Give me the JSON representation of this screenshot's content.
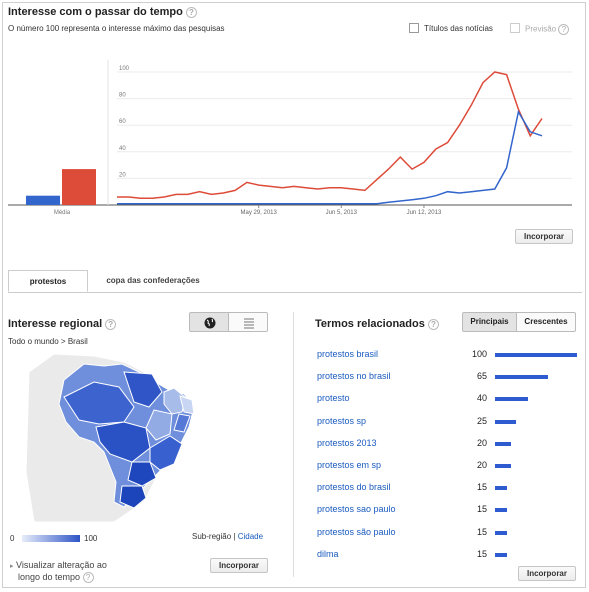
{
  "header": {
    "title": "Interesse com o passar do tempo",
    "subtitle": "O número 100 representa o interesse máximo das pesquisas",
    "news_label": "Títulos das notícias",
    "forecast_label": "Previsão"
  },
  "chart_data": {
    "type": "line",
    "x": [
      "May 17, 2013",
      "May 18, 2013",
      "May 19, 2013",
      "May 20, 2013",
      "May 21, 2013",
      "May 22, 2013",
      "May 23, 2013",
      "May 24, 2013",
      "May 25, 2013",
      "May 26, 2013",
      "May 27, 2013",
      "May 28, 2013",
      "May 29, 2013",
      "May 30, 2013",
      "May 31, 2013",
      "Jun 1, 2013",
      "Jun 2, 2013",
      "Jun 3, 2013",
      "Jun 4, 2013",
      "Jun 5, 2013",
      "Jun 6, 2013",
      "Jun 7, 2013",
      "Jun 8, 2013",
      "Jun 9, 2013",
      "Jun 10, 2013",
      "Jun 11, 2013",
      "Jun 12, 2013",
      "Jun 13, 2013",
      "Jun 14, 2013",
      "Jun 15, 2013",
      "Jun 16, 2013",
      "Jun 17, 2013",
      "Jun 18, 2013",
      "Jun 19, 2013",
      "Jun 20, 2013",
      "Jun 21, 2013",
      "Jun 22, 2013"
    ],
    "xticks": [
      "May 29, 2013",
      "Jun 5, 2013",
      "Jun 12, 2013"
    ],
    "yticks": [
      20,
      40,
      60,
      80,
      100
    ],
    "ylim": [
      0,
      100
    ],
    "series": [
      {
        "color": "#dd4b39",
        "values": [
          6,
          6,
          5,
          5,
          6,
          8,
          8,
          10,
          8,
          9,
          11,
          17,
          15,
          14,
          13,
          14,
          13,
          12,
          13,
          13,
          12,
          11,
          19,
          27,
          36,
          27,
          32,
          42,
          47,
          60,
          75,
          92,
          100,
          98,
          72,
          52,
          65
        ]
      },
      {
        "color": "#3366cc",
        "values": [
          1,
          1,
          1,
          1,
          1,
          1,
          1,
          1,
          1,
          1,
          1,
          1,
          1,
          1,
          1,
          1,
          1,
          1,
          1,
          1,
          1,
          1,
          1,
          2,
          3,
          4,
          5,
          7,
          10,
          9,
          10,
          11,
          12,
          28,
          70,
          55,
          52
        ]
      }
    ],
    "average": [
      {
        "label": "Média",
        "color": "#3366cc",
        "value": 7
      },
      {
        "label": "Média",
        "color": "#dd4b39",
        "value": 27
      }
    ],
    "average_label": "Média"
  },
  "embed_label": "Incorporar",
  "tabs": [
    {
      "label": "protestos"
    },
    {
      "label": "copa das confederações"
    }
  ],
  "regional": {
    "title": "Interesse regional",
    "breadcrumb": "Todo o mundo > Brasil",
    "legend_min": "0",
    "legend_max": "100",
    "subregion_label": "Sub-região",
    "separator": "|",
    "city_label": "Cidade",
    "embed_label": "Incorporar",
    "change_label_line1": "Visualizar alteração ao",
    "change_label_line2": "longo do tempo"
  },
  "related": {
    "title": "Termos relacionados",
    "tab_top": "Principais",
    "tab_rising": "Crescentes",
    "embed_label": "Incorporar",
    "terms": [
      {
        "label": "protestos brasil",
        "value": "100",
        "fraction": 1.0
      },
      {
        "label": "protestos no brasil",
        "value": "65",
        "fraction": 0.65
      },
      {
        "label": "protesto",
        "value": "40",
        "fraction": 0.4
      },
      {
        "label": "protestos sp",
        "value": "25",
        "fraction": 0.25
      },
      {
        "label": "protestos 2013",
        "value": "20",
        "fraction": 0.2
      },
      {
        "label": "protestos em sp",
        "value": "20",
        "fraction": 0.2
      },
      {
        "label": "protestos do brasil",
        "value": "15",
        "fraction": 0.15
      },
      {
        "label": "protestos sao paulo",
        "value": "15",
        "fraction": 0.15
      },
      {
        "label": "protestos são paulo",
        "value": "15",
        "fraction": 0.15
      },
      {
        "label": "dilma",
        "value": "15",
        "fraction": 0.15
      }
    ]
  }
}
